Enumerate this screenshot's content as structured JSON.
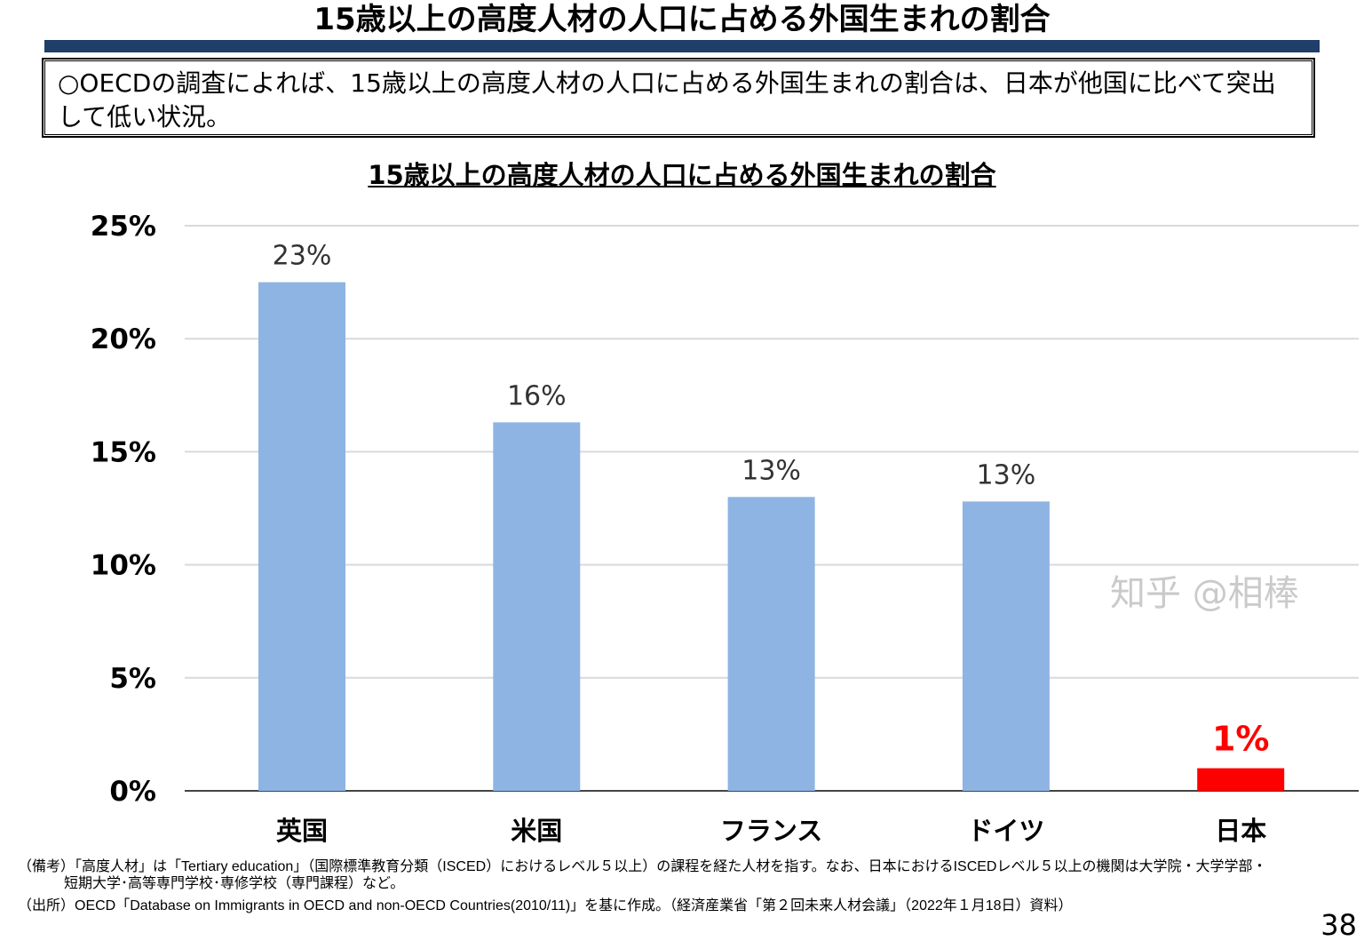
{
  "header": {
    "title": "15歳以上の高度人材の人口に占める外国生まれの割合"
  },
  "summary": "○OECDの調査によれば、15歳以上の高度人材の人口に占める外国生まれの割合は、日本が他国に比べて突出して低い状況。",
  "chart_data": {
    "type": "bar",
    "title": "15歳以上の高度人材の人口に占める外国生まれの割合",
    "categories": [
      "英国",
      "米国",
      "フランス",
      "ドイツ",
      "日本"
    ],
    "values": [
      22.5,
      16.3,
      13.0,
      12.8,
      1.0
    ],
    "data_labels": [
      "23%",
      "16%",
      "13%",
      "13%",
      "1%"
    ],
    "colors": [
      "#8eb4e3",
      "#8eb4e3",
      "#8eb4e3",
      "#8eb4e3",
      "#ff0000"
    ],
    "label_colors": [
      "#333333",
      "#333333",
      "#333333",
      "#333333",
      "#ff0000"
    ],
    "ylim": [
      0,
      25
    ],
    "yticks": [
      0,
      5,
      10,
      15,
      20,
      25
    ],
    "ytick_labels": [
      "0%",
      "5%",
      "10%",
      "15%",
      "20%",
      "25%"
    ],
    "grid": true,
    "xlabel": "",
    "ylabel": ""
  },
  "footnotes": {
    "note1": "（備考）「高度人材」は「Tertiary education」（国際標準教育分類（ISCED）におけるレベル５以上）の課程を経た人材を指す。なお、日本におけるISCEDレベル５以上の機関は大学院・大学学部・",
    "note2": "短期大学･高等専門学校･専修学校（専門課程）など。",
    "source": "（出所）OECD「Database on Immigrants in OECD and non-OECD Countries(2010/11)」を基に作成。（経済産業省「第２回未来人材会議」（2022年１月18日）資料）"
  },
  "watermark": "知乎 @相棒",
  "page_number": "38"
}
